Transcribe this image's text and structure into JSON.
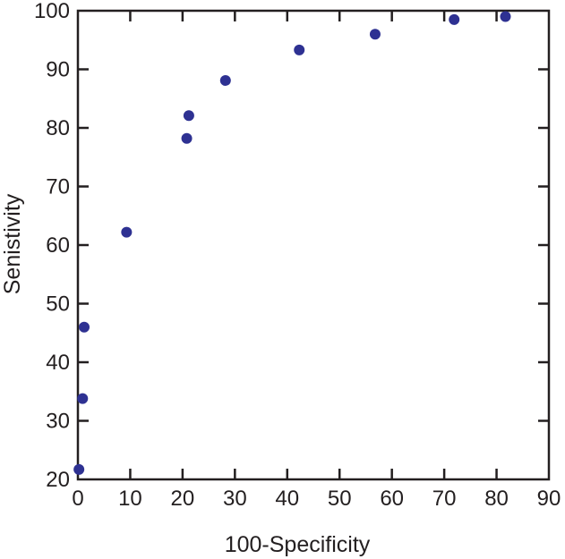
{
  "chart_data": {
    "type": "scatter",
    "title": "",
    "xlabel": "100-Specificity",
    "ylabel": "Senistivity",
    "xlim": [
      0,
      90
    ],
    "ylim": [
      20,
      100
    ],
    "xticks": [
      "0",
      "10",
      "20",
      "30",
      "40",
      "50",
      "60",
      "70",
      "80",
      "90"
    ],
    "yticks": [
      "20",
      "30",
      "40",
      "50",
      "60",
      "70",
      "80",
      "90",
      "100"
    ],
    "grid": false,
    "legend": "none",
    "point_color": "#2e3192",
    "axis_color": "#231f20",
    "series": [
      {
        "points": [
          {
            "x": 0.2,
            "y": 21.7
          },
          {
            "x": 0.9,
            "y": 33.8
          },
          {
            "x": 1.2,
            "y": 46.0
          },
          {
            "x": 9.3,
            "y": 62.2
          },
          {
            "x": 20.8,
            "y": 78.2
          },
          {
            "x": 21.2,
            "y": 82.1
          },
          {
            "x": 28.2,
            "y": 88.1
          },
          {
            "x": 42.3,
            "y": 93.3
          },
          {
            "x": 56.8,
            "y": 96.0
          },
          {
            "x": 71.9,
            "y": 98.5
          },
          {
            "x": 81.7,
            "y": 99.0
          }
        ]
      }
    ]
  }
}
